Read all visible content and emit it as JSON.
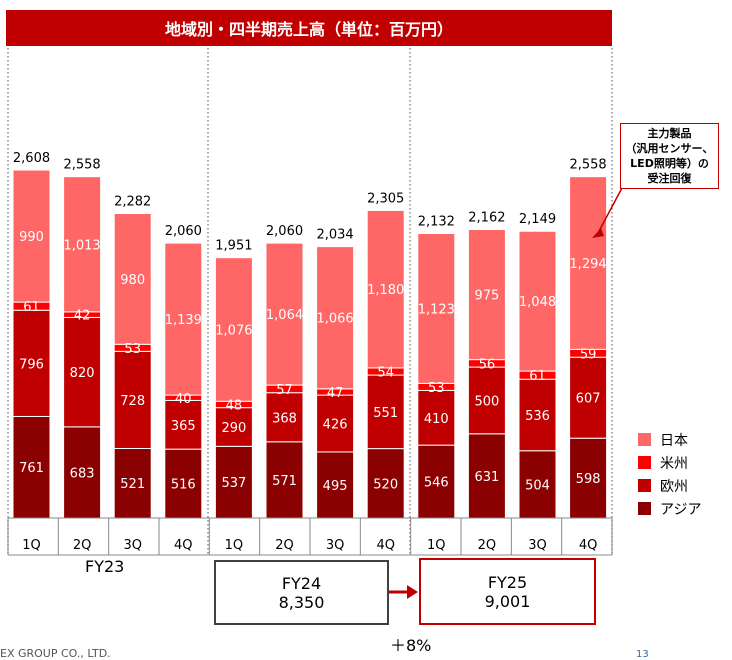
{
  "title": "地域別・四半期売上高（単位：百万円）",
  "chart_data": {
    "type": "bar",
    "stacked": true,
    "categories": [
      "1Q",
      "2Q",
      "3Q",
      "4Q",
      "1Q",
      "2Q",
      "3Q",
      "4Q",
      "1Q",
      "2Q",
      "3Q",
      "4Q"
    ],
    "groups": [
      {
        "label": "FY23",
        "start": 0,
        "end": 3
      },
      {
        "label": "FY24",
        "start": 4,
        "end": 7
      },
      {
        "label": "FY25",
        "start": 8,
        "end": 11
      }
    ],
    "series": [
      {
        "name": "アジア",
        "color": "#8b0000",
        "values": [
          761,
          683,
          521,
          516,
          537,
          571,
          495,
          520,
          546,
          631,
          504,
          598
        ]
      },
      {
        "name": "欧州",
        "color": "#c00000",
        "values": [
          796,
          820,
          728,
          365,
          290,
          368,
          426,
          551,
          410,
          500,
          536,
          607
        ]
      },
      {
        "name": "米州",
        "color": "#ff0000",
        "values": [
          61,
          42,
          53,
          40,
          48,
          57,
          47,
          54,
          53,
          56,
          61,
          59
        ]
      },
      {
        "name": "日本",
        "color": "#ff6666",
        "values": [
          990,
          1013,
          980,
          1139,
          1076,
          1064,
          1066,
          1180,
          1123,
          975,
          1048,
          1294
        ]
      }
    ],
    "totals": [
      "2,608",
      "2,558",
      "2,282",
      "2,060",
      "1,951",
      "2,060",
      "2,034",
      "2,305",
      "2,132",
      "2,162",
      "2,149",
      "2,558"
    ],
    "value_labels": [
      [
        "761",
        "683",
        "521",
        "516",
        "537",
        "571",
        "495",
        "520",
        "546",
        "631",
        "504",
        "598"
      ],
      [
        "796",
        "820",
        "728",
        "365",
        "290",
        "368",
        "426",
        "551",
        "410",
        "500",
        "536",
        "607"
      ],
      [
        "61",
        "42",
        "53",
        "40",
        "48",
        "57",
        "47",
        "54",
        "53",
        "56",
        "61",
        "59"
      ],
      [
        "990",
        "1,013",
        "980",
        "1,139",
        "1,076",
        "1,064",
        "1,066",
        "1,180",
        "1,123",
        "975",
        "1,048",
        "1,294"
      ]
    ],
    "ylim": [
      0,
      2608
    ],
    "grid": false,
    "legend_position": "right"
  },
  "legend": [
    {
      "label": "日本",
      "color": "#ff6666"
    },
    {
      "label": "米州",
      "color": "#ff0000"
    },
    {
      "label": "欧州",
      "color": "#c00000"
    },
    {
      "label": "アジア",
      "color": "#8b0000"
    }
  ],
  "fiscal_years": {
    "fy23": "FY23",
    "fy24": {
      "label": "FY24",
      "total": "8,350"
    },
    "fy25": {
      "label": "FY25",
      "total": "9,001"
    }
  },
  "growth": "＋8%",
  "callout": {
    "lines": [
      "主力製品",
      "（汎用センサー、",
      "LED照明等）の",
      "受注回復"
    ]
  },
  "footer": {
    "company": "EX GROUP CO., LTD.",
    "page": "13"
  }
}
